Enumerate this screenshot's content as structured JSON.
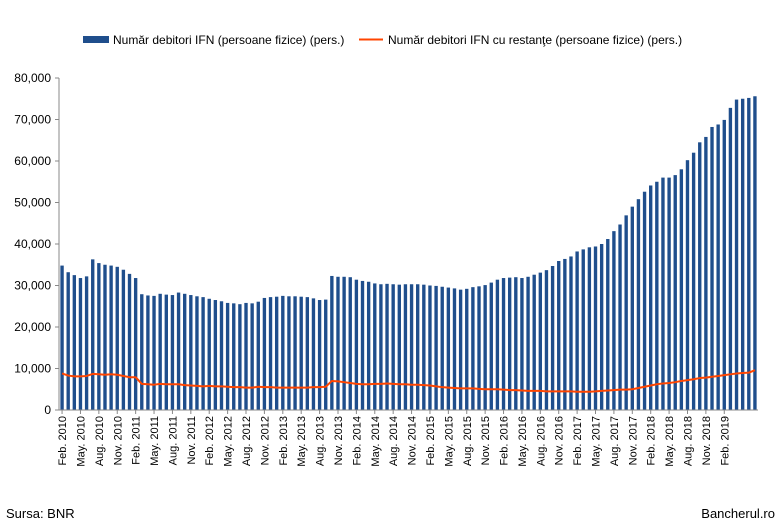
{
  "legend": {
    "bar_label": "Număr debitori IFN (persoane fizice) (pers.)",
    "line_label": "Număr debitori IFN cu restanţe (persoane fizice) (pers.)"
  },
  "footer": {
    "source": "Sursa: BNR",
    "site": "Bancherul.ro"
  },
  "chart_data": {
    "type": "bar",
    "title": "",
    "xlabel": "",
    "ylabel": "",
    "ylim": [
      0,
      80000
    ],
    "y_ticks": [
      "0",
      "10,000",
      "20,000",
      "30,000",
      "40,000",
      "50,000",
      "60,000",
      "70,000",
      "80,000"
    ],
    "grid": false,
    "legend_position": "top",
    "colors": {
      "bars": "#1f4e8c",
      "line": "#ff4500"
    },
    "x_tick_labels": [
      "Feb. 2010",
      "May. 2010",
      "Aug. 2010",
      "Nov. 2010",
      "Feb. 2011",
      "May. 2011",
      "Aug. 2011",
      "Nov. 2011",
      "Feb. 2012",
      "May. 2012",
      "Aug. 2012",
      "Nov. 2012",
      "Feb. 2013",
      "May. 2013",
      "Aug. 2013",
      "Nov. 2013",
      "Feb. 2014",
      "May. 2014",
      "Aug. 2014",
      "Nov. 2014",
      "Feb. 2015",
      "May. 2015",
      "Aug. 2015",
      "Nov. 2015",
      "Feb. 2016",
      "May. 2016",
      "Aug. 2016",
      "Nov. 2016",
      "Feb. 2017",
      "May. 2017",
      "Aug. 2017",
      "Nov. 2017",
      "Feb. 2018",
      "May. 2018",
      "Aug. 2018",
      "Nov. 2018",
      "Feb. 2019"
    ],
    "series": [
      {
        "name": "Număr debitori IFN (persoane fizice) (pers.)",
        "type": "bar",
        "values": [
          34800,
          33200,
          32500,
          31800,
          32200,
          36300,
          35400,
          35000,
          34800,
          34500,
          33800,
          32800,
          31800,
          27900,
          27600,
          27500,
          28000,
          27800,
          27700,
          28300,
          28000,
          27700,
          27400,
          27200,
          26800,
          26500,
          26200,
          25800,
          25700,
          25500,
          25800,
          25700,
          26100,
          27000,
          27200,
          27300,
          27500,
          27400,
          27400,
          27300,
          27200,
          26900,
          26500,
          26600,
          32300,
          32100,
          32100,
          32000,
          31400,
          31100,
          30900,
          30500,
          30300,
          30400,
          30300,
          30200,
          30300,
          30300,
          30300,
          30200,
          30000,
          29900,
          29700,
          29500,
          29300,
          29000,
          29200,
          29600,
          29800,
          30100,
          30700,
          31400,
          31800,
          31900,
          32000,
          31800,
          32100,
          32600,
          33100,
          33700,
          34700,
          35900,
          36400,
          37000,
          38200,
          38700,
          39200,
          39400,
          40000,
          41200,
          43100,
          44700,
          46900,
          49000,
          50800,
          52600,
          54100,
          55000,
          56000,
          56000,
          56600,
          58000,
          60200,
          62000,
          64500,
          65800,
          68200,
          68800,
          69900,
          72800,
          74800,
          75000,
          75200,
          75600
        ],
        "labeled_values": {
          "Feb. 2010": 34800,
          "Aug. 2010": 36300,
          "Feb. 2011": 31800,
          "Aug. 2012": 25700,
          "Aug. 2013": 26600,
          "Nov. 2013": 32100,
          "Nov. 2015": 31400,
          "Feb. 2019": 75600
        }
      },
      {
        "name": "Număr debitori IFN cu restanţe (persoane fizice) (pers.)",
        "type": "line",
        "values": [
          8800,
          8300,
          8100,
          8100,
          8200,
          8700,
          8600,
          8500,
          8600,
          8500,
          8200,
          7900,
          7900,
          6300,
          6200,
          6100,
          6300,
          6200,
          6200,
          6200,
          6000,
          5900,
          5800,
          5700,
          5800,
          5700,
          5700,
          5600,
          5500,
          5500,
          5400,
          5400,
          5600,
          5500,
          5500,
          5400,
          5400,
          5400,
          5400,
          5400,
          5400,
          5500,
          5500,
          5600,
          7000,
          6900,
          6700,
          6500,
          6300,
          6200,
          6200,
          6300,
          6300,
          6400,
          6300,
          6200,
          6200,
          6100,
          6100,
          6000,
          5900,
          5700,
          5500,
          5400,
          5300,
          5200,
          5200,
          5200,
          5100,
          5000,
          5000,
          5000,
          4900,
          4800,
          4800,
          4700,
          4600,
          4600,
          4600,
          4500,
          4500,
          4500,
          4500,
          4500,
          4400,
          4400,
          4400,
          4500,
          4600,
          4700,
          4800,
          4900,
          4900,
          5000,
          5300,
          5600,
          5900,
          6200,
          6400,
          6500,
          6700,
          7000,
          7200,
          7400,
          7700,
          7800,
          8000,
          8200,
          8400,
          8600,
          8800,
          8900,
          9000,
          9600
        ]
      }
    ]
  }
}
